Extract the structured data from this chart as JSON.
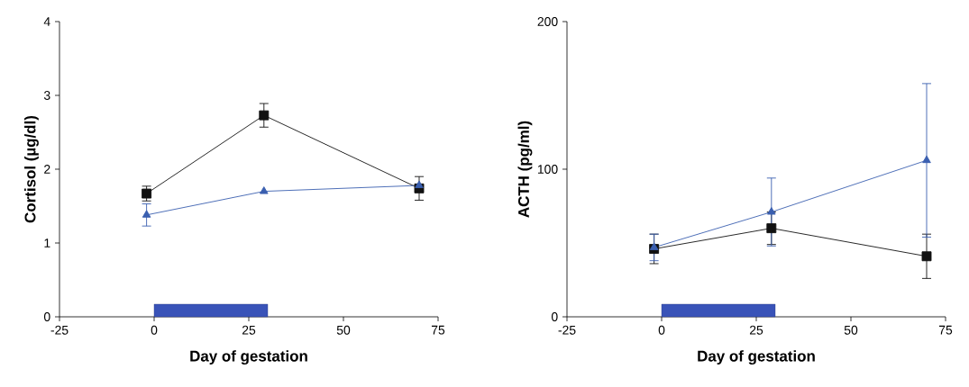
{
  "chart_data": [
    {
      "type": "line",
      "xlabel": "Day of gestation",
      "ylabel": "Cortisol (µg/dl)",
      "x": [
        -2,
        29,
        70
      ],
      "series": [
        {
          "color": "#111111",
          "marker": "square",
          "values": [
            1.67,
            2.73,
            1.74
          ],
          "errors": [
            0.1,
            0.16,
            0.16
          ]
        },
        {
          "color": "#3a5fb0",
          "marker": "triangle",
          "values": [
            1.38,
            1.7,
            1.78
          ],
          "errors": [
            0.15,
            null,
            null
          ]
        }
      ],
      "xlim": [
        -25,
        75
      ],
      "xticks": [
        -25,
        0,
        25,
        50,
        75
      ],
      "ylim": [
        0,
        4
      ],
      "yticks": [
        0,
        1,
        2,
        3,
        4
      ],
      "bands": [
        {
          "axis": "x",
          "from": 0,
          "to": 30,
          "color": "#3953b8"
        }
      ]
    },
    {
      "type": "line",
      "xlabel": "Day of gestation",
      "ylabel": "ACTH (pg/ml)",
      "x": [
        -2,
        29,
        70
      ],
      "series": [
        {
          "color": "#111111",
          "marker": "square",
          "values": [
            46,
            60,
            41
          ],
          "errors": [
            10,
            11,
            15
          ]
        },
        {
          "color": "#3a5fb0",
          "marker": "triangle",
          "values": [
            47,
            71,
            106
          ],
          "errors": [
            9,
            23,
            52
          ]
        }
      ],
      "xlim": [
        -25,
        75
      ],
      "xticks": [
        -25,
        0,
        25,
        50,
        75
      ],
      "ylim": [
        0,
        200
      ],
      "yticks": [
        0,
        100,
        200
      ],
      "bands": [
        {
          "axis": "x",
          "from": 0,
          "to": 30,
          "color": "#3953b8"
        }
      ]
    }
  ]
}
